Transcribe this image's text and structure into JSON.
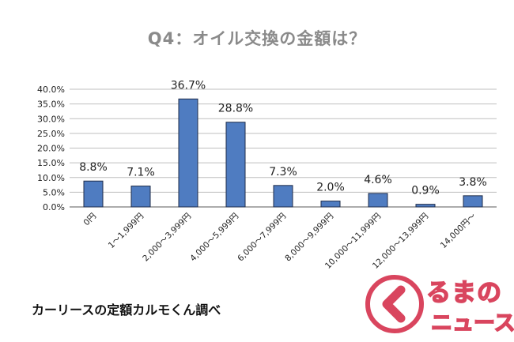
{
  "title": "Q4：オイル交換の金額は？",
  "source": "カーリースの定額カルモくん調べ",
  "logo": {
    "line1": "るまの",
    "line2": "ニュース",
    "icon": "chevron-left-icon",
    "color": "#d9455e"
  },
  "colors": {
    "bar": "#4f7cc1",
    "bar_stroke": "#1f2d4a",
    "grid": "#bfbfbf",
    "title": "#8a8a8a"
  },
  "chart_data": {
    "type": "bar",
    "title": "Q4：オイル交換の金額は？",
    "categories": [
      "0円",
      "1～1,999円",
      "2,000～3,999円",
      "4,000～5,999円",
      "6,000～7,999円",
      "8,000～9,999円",
      "10,000～11,999円",
      "12,000～13,999円",
      "14,000円～"
    ],
    "values": [
      8.8,
      7.1,
      36.7,
      28.8,
      7.3,
      2.0,
      4.6,
      0.9,
      3.8
    ],
    "data_labels": [
      "8.8%",
      "7.1%",
      "36.7%",
      "28.8%",
      "7.3%",
      "2.0%",
      "4.6%",
      "0.9%",
      "3.8%"
    ],
    "yticks": [
      "0.0%",
      "5.0%",
      "10.0%",
      "15.0%",
      "20.0%",
      "25.0%",
      "30.0%",
      "35.0%",
      "40.0%"
    ],
    "ylim": [
      0,
      40
    ],
    "grid": true,
    "legend": "none"
  }
}
